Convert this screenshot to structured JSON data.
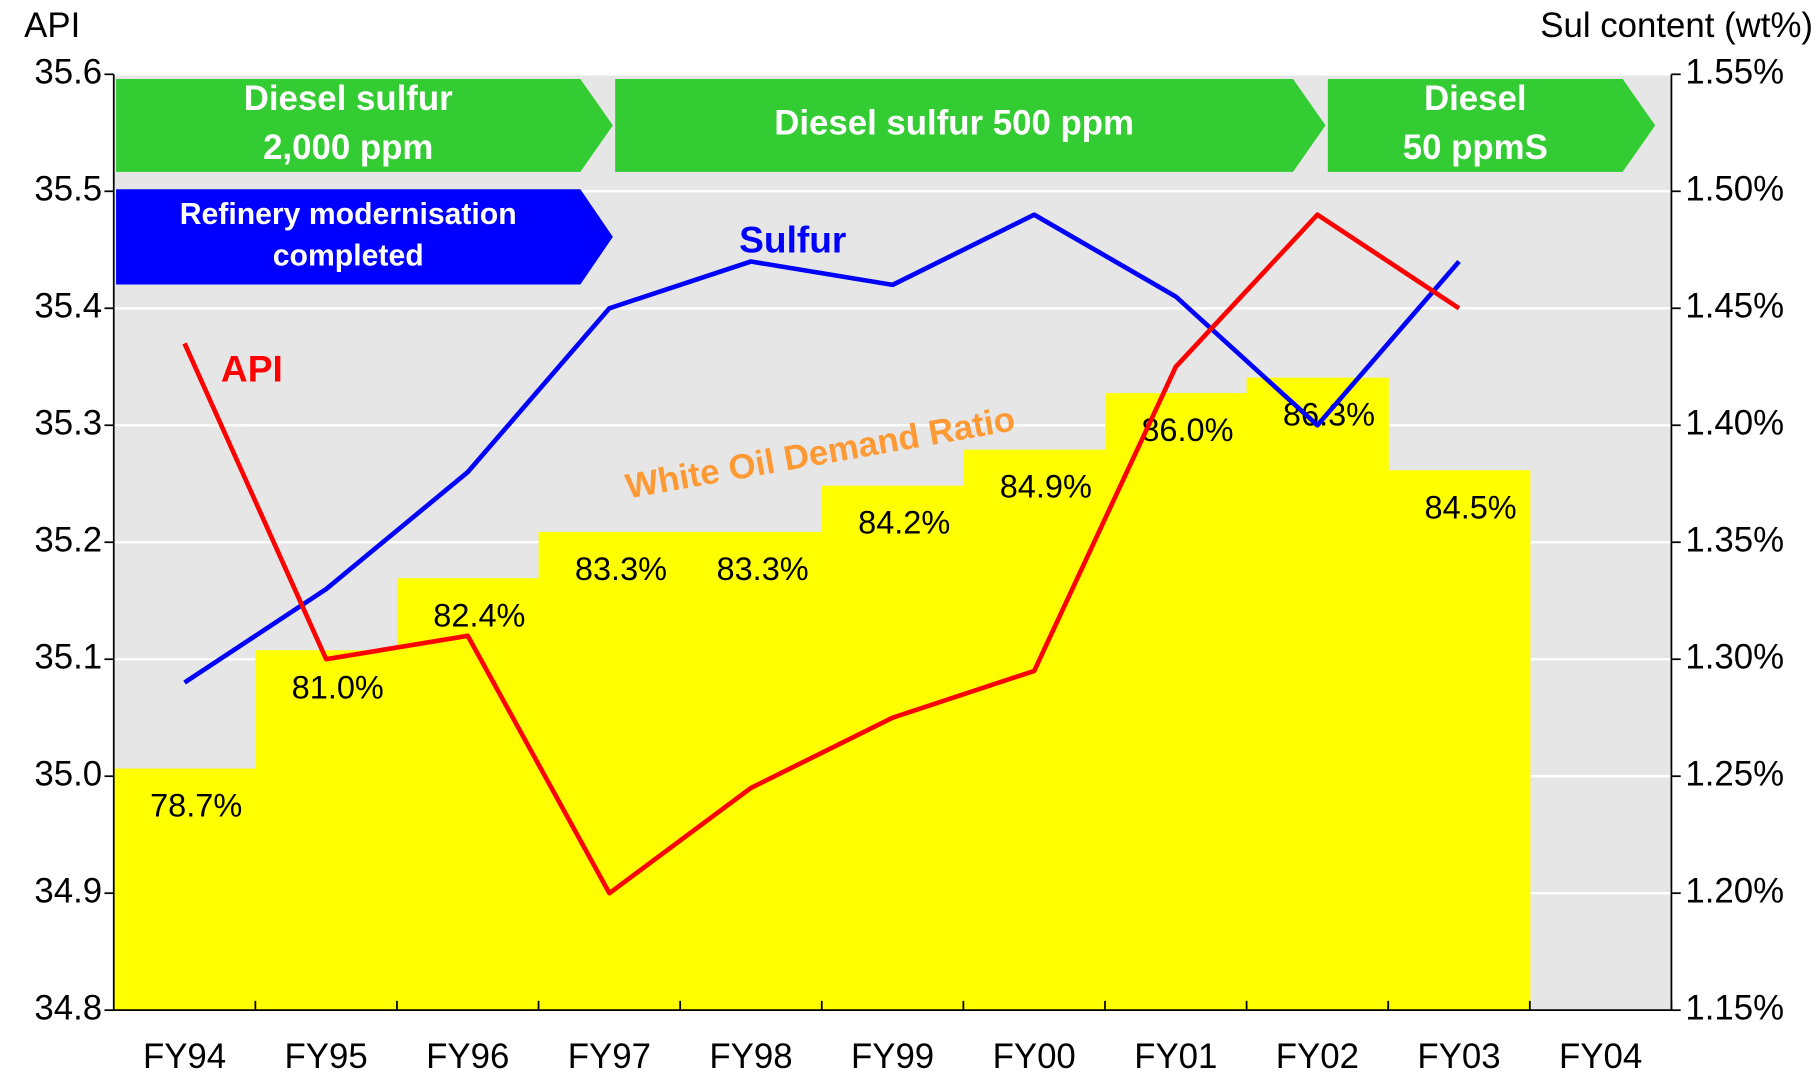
{
  "chart_data": {
    "type": "combo",
    "y_label": "API",
    "y2_label": "Sul content (wt%)",
    "categories": [
      "FY94",
      "FY95",
      "FY96",
      "FY97",
      "FY98",
      "FY99",
      "FY00",
      "FY01",
      "FY02",
      "FY03",
      "FY04"
    ],
    "ylim": [
      34.8,
      35.6
    ],
    "yticks": [
      34.8,
      34.9,
      {
        "value": 35,
        "label": "35.0"
      },
      35.1,
      35.2,
      35.3,
      35.4,
      35.5,
      35.6
    ],
    "y2lim": [
      1.15,
      1.55
    ],
    "y2ticks": [
      {
        "value": 1.15,
        "label": "1.15%"
      },
      {
        "value": 1.2,
        "label": "1.20%"
      },
      {
        "value": 1.25,
        "label": "1.25%"
      },
      {
        "value": 1.3,
        "label": "1.30%"
      },
      {
        "value": 1.35,
        "label": "1.35%"
      },
      {
        "value": 1.4,
        "label": "1.40%"
      },
      {
        "value": 1.45,
        "label": "1.45%"
      },
      {
        "value": 1.5,
        "label": "1.50%"
      },
      {
        "value": 1.55,
        "label": "1.55%"
      }
    ],
    "y3lim": [
      74,
      92.2
    ],
    "grid": true,
    "series": [
      {
        "name": "White Oil Demand Ratio",
        "type": "step-area",
        "axis": "y3",
        "color": "#ffff00",
        "label_color": "#ff9933",
        "values": [
          78.7,
          81.0,
          82.4,
          83.3,
          83.3,
          84.2,
          84.9,
          86.0,
          86.3,
          84.5,
          null
        ],
        "value_labels": [
          "78.7%",
          "81.0%",
          "82.4%",
          "83.3%",
          "83.3%",
          "84.2%",
          "84.9%",
          "86.0%",
          "86.3%",
          "84.5%",
          null
        ]
      },
      {
        "name": "Sulfur",
        "type": "line",
        "axis": "y2",
        "color": "#0000ff",
        "values": [
          1.29,
          1.33,
          1.38,
          1.45,
          1.47,
          1.46,
          1.49,
          1.455,
          1.4,
          1.47,
          null
        ]
      },
      {
        "name": "API",
        "type": "line",
        "axis": "y",
        "color": "#ff0000",
        "values": [
          35.37,
          35.1,
          35.12,
          34.9,
          34.99,
          35.05,
          35.09,
          35.35,
          35.48,
          35.4,
          null
        ]
      }
    ],
    "annotations": [
      {
        "lines": [
          "Diesel sulfur",
          "2,000 ppm"
        ],
        "color": "#33cc33"
      },
      {
        "lines": [
          "Diesel sulfur 500 ppm"
        ],
        "color": "#33cc33"
      },
      {
        "lines": [
          "Diesel",
          "50 ppmS"
        ],
        "color": "#33cc33"
      },
      {
        "lines": [
          "Refinery modernisation",
          "completed"
        ],
        "color": "#0000ff"
      }
    ]
  }
}
